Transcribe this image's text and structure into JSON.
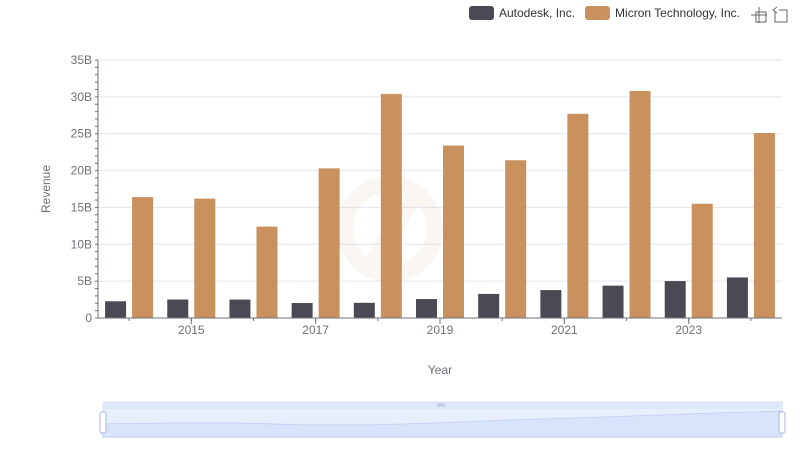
{
  "legend": {
    "items": [
      {
        "label": "Autodesk, Inc.",
        "color": "#4a4a55"
      },
      {
        "label": "Micron Technology, Inc.",
        "color": "#c8915d"
      }
    ]
  },
  "toolbox": {
    "icons": [
      "zoom-icon",
      "zoom-reset-icon"
    ]
  },
  "chart_data": {
    "type": "bar",
    "xlabel": "Year",
    "ylabel": "Revenue",
    "x": [
      2014,
      2015,
      2016,
      2017,
      2018,
      2019,
      2020,
      2021,
      2022,
      2023,
      2024
    ],
    "xticks": [
      "2015",
      "2017",
      "2019",
      "2021",
      "2023"
    ],
    "yticks": [
      "0",
      "5B",
      "10B",
      "15B",
      "20B",
      "25B",
      "30B",
      "35B"
    ],
    "ylim": [
      0,
      35000000000
    ],
    "grid": true,
    "legend_position": "top-right",
    "series": [
      {
        "name": "Autodesk, Inc.",
        "color": "#4a4a55",
        "values": [
          2270000000,
          2510000000,
          2500000000,
          2030000000,
          2060000000,
          2570000000,
          3270000000,
          3790000000,
          4390000000,
          5010000000,
          5500000000
        ]
      },
      {
        "name": "Micron Technology, Inc.",
        "color": "#c8915d",
        "values": [
          16400000000,
          16200000000,
          12400000000,
          20300000000,
          30400000000,
          23400000000,
          21400000000,
          27700000000,
          30800000000,
          15500000000,
          25100000000
        ]
      }
    ]
  }
}
